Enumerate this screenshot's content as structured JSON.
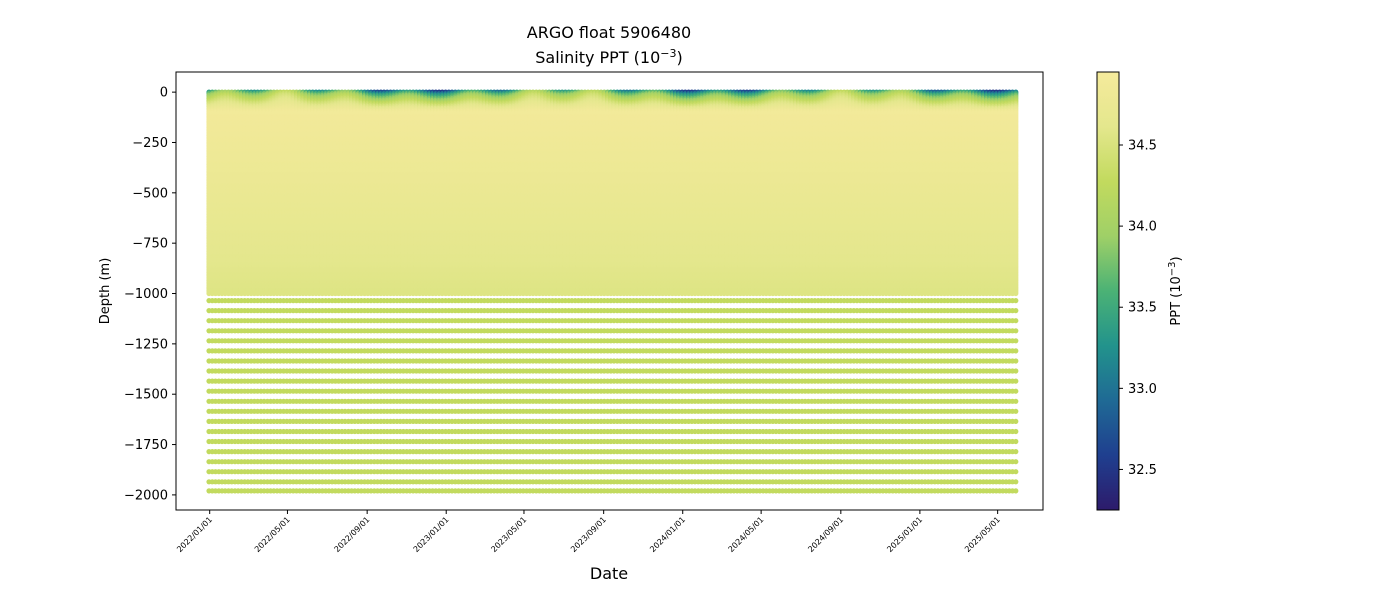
{
  "chart_data": {
    "type": "scatter",
    "title": "ARGO float 5906480",
    "subtitle": "Salinity PPT (10",
    "subtitle_exp": "−3",
    "subtitle_end": ")",
    "xlabel": "Date",
    "ylabel": "Depth (m)",
    "colorbar_label": "PPT (10",
    "colorbar_label_exp": "−3",
    "colorbar_label_end": ")",
    "colormap": [
      "#2d1b6b",
      "#1f3f8f",
      "#1f6a95",
      "#22938c",
      "#4bb275",
      "#9fd067",
      "#c2da5e",
      "#e4e78d",
      "#f5ea9c"
    ],
    "marker_color_deep": "#c2da5e",
    "x_range": [
      "2021-11-10",
      "2025-07-10"
    ],
    "ylim": [
      -2075,
      100
    ],
    "clim": [
      32.25,
      34.95
    ],
    "colorbar_ticks": [
      "32.5",
      "33.0",
      "33.5",
      "34.0",
      "34.5"
    ],
    "xticks": [
      "2022/01/01",
      "2022/05/01",
      "2022/09/01",
      "2023/01/01",
      "2023/05/01",
      "2023/09/01",
      "2024/01/01",
      "2024/05/01",
      "2024/09/01",
      "2025/01/01",
      "2025/05/01"
    ],
    "yticks": [
      "0",
      "−250",
      "−500",
      "−750",
      "−1000",
      "−1250",
      "−1500",
      "−1750",
      "−2000"
    ],
    "profiles": {
      "first_date": "2021-12-31",
      "last_date": "2025-05-27",
      "interval_days": 5,
      "dense_depth_range": [
        0,
        -1000
      ],
      "surface_salinity_range": [
        32.5,
        34.3
      ],
      "salinity_at_100m": 34.9,
      "salinity_at_1000m": 34.55,
      "deep_levels": [
        -1035,
        -1085,
        -1135,
        -1185,
        -1235,
        -1285,
        -1335,
        -1385,
        -1435,
        -1485,
        -1535,
        -1585,
        -1635,
        -1685,
        -1735,
        -1785,
        -1835,
        -1885,
        -1935,
        -1980
      ],
      "deep_salinity": 34.6
    }
  }
}
